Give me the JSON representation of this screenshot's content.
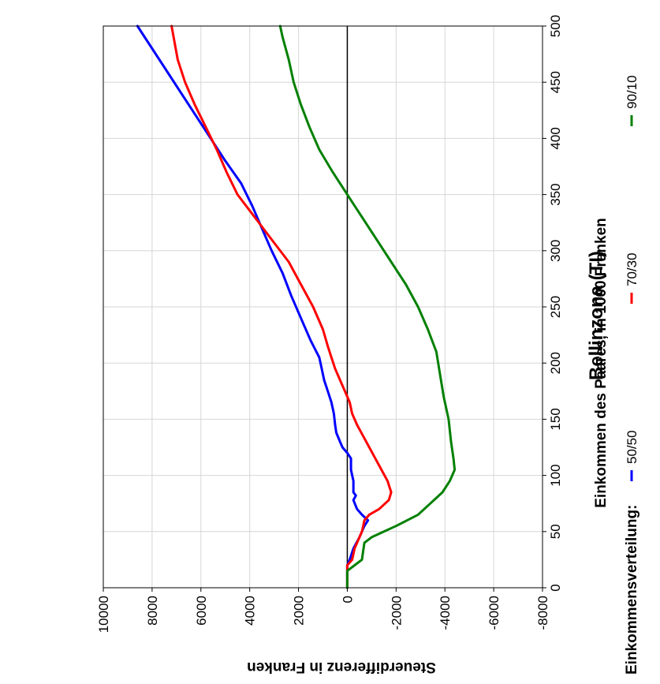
{
  "chart_data": {
    "type": "line",
    "title": "Bellinzona (TI)",
    "xlabel": "Einkommen des Paares, in 1000 Franken",
    "ylabel": "Steuerdifferenz in Franken",
    "xlim": [
      0,
      500
    ],
    "ylim": [
      -8000,
      10000
    ],
    "x_ticks": [
      "0",
      "50",
      "100",
      "150",
      "200",
      "250",
      "300",
      "350",
      "400",
      "450",
      "500"
    ],
    "y_ticks": [
      "10000",
      "8000",
      "6000",
      "4000",
      "2000",
      "0",
      "-2000",
      "-4000",
      "-6000",
      "-8000"
    ],
    "grid": true,
    "orientation": "rotated-90",
    "legend": {
      "title": "Einkommensverteilung:",
      "placement": "bottom"
    },
    "series": [
      {
        "name": "50/50",
        "color": "#0000ff",
        "points": [
          [
            0,
            0
          ],
          [
            20,
            0
          ],
          [
            25,
            -100
          ],
          [
            35,
            -250
          ],
          [
            45,
            -500
          ],
          [
            55,
            -700
          ],
          [
            60,
            -850
          ],
          [
            65,
            -600
          ],
          [
            70,
            -400
          ],
          [
            78,
            -250
          ],
          [
            82,
            -350
          ],
          [
            85,
            -250
          ],
          [
            95,
            -250
          ],
          [
            105,
            -150
          ],
          [
            115,
            -150
          ],
          [
            120,
            0
          ],
          [
            125,
            200
          ],
          [
            130,
            300
          ],
          [
            138,
            450
          ],
          [
            145,
            500
          ],
          [
            155,
            550
          ],
          [
            165,
            650
          ],
          [
            175,
            800
          ],
          [
            185,
            950
          ],
          [
            195,
            1050
          ],
          [
            205,
            1150
          ],
          [
            220,
            1500
          ],
          [
            240,
            1900
          ],
          [
            260,
            2300
          ],
          [
            280,
            2650
          ],
          [
            300,
            3100
          ],
          [
            320,
            3500
          ],
          [
            340,
            3900
          ],
          [
            360,
            4350
          ],
          [
            380,
            5000
          ],
          [
            400,
            5600
          ],
          [
            420,
            6200
          ],
          [
            440,
            6800
          ],
          [
            460,
            7400
          ],
          [
            480,
            8000
          ],
          [
            500,
            8600
          ]
        ]
      },
      {
        "name": "70/30",
        "color": "#ff0000",
        "points": [
          [
            0,
            0
          ],
          [
            20,
            0
          ],
          [
            25,
            -200
          ],
          [
            35,
            -300
          ],
          [
            45,
            -500
          ],
          [
            50,
            -600
          ],
          [
            55,
            -650
          ],
          [
            60,
            -700
          ],
          [
            65,
            -900
          ],
          [
            70,
            -1300
          ],
          [
            78,
            -1700
          ],
          [
            85,
            -1800
          ],
          [
            95,
            -1650
          ],
          [
            105,
            -1400
          ],
          [
            115,
            -1150
          ],
          [
            125,
            -900
          ],
          [
            135,
            -650
          ],
          [
            145,
            -400
          ],
          [
            155,
            -200
          ],
          [
            165,
            -100
          ],
          [
            175,
            100
          ],
          [
            185,
            300
          ],
          [
            195,
            500
          ],
          [
            205,
            650
          ],
          [
            215,
            800
          ],
          [
            230,
            1000
          ],
          [
            250,
            1400
          ],
          [
            270,
            1900
          ],
          [
            290,
            2400
          ],
          [
            310,
            3100
          ],
          [
            330,
            3800
          ],
          [
            350,
            4500
          ],
          [
            370,
            4950
          ],
          [
            390,
            5350
          ],
          [
            410,
            5800
          ],
          [
            430,
            6250
          ],
          [
            450,
            6650
          ],
          [
            470,
            6950
          ],
          [
            500,
            7200
          ]
        ]
      },
      {
        "name": "90/10",
        "color": "#008000",
        "points": [
          [
            0,
            0
          ],
          [
            15,
            0
          ],
          [
            20,
            -300
          ],
          [
            25,
            -600
          ],
          [
            40,
            -700
          ],
          [
            45,
            -1000
          ],
          [
            50,
            -1500
          ],
          [
            55,
            -2000
          ],
          [
            65,
            -2900
          ],
          [
            75,
            -3400
          ],
          [
            85,
            -3900
          ],
          [
            95,
            -4200
          ],
          [
            105,
            -4400
          ],
          [
            115,
            -4350
          ],
          [
            130,
            -4250
          ],
          [
            150,
            -4150
          ],
          [
            170,
            -3950
          ],
          [
            190,
            -3800
          ],
          [
            210,
            -3650
          ],
          [
            230,
            -3300
          ],
          [
            250,
            -2900
          ],
          [
            270,
            -2400
          ],
          [
            290,
            -1800
          ],
          [
            310,
            -1200
          ],
          [
            330,
            -600
          ],
          [
            350,
            0
          ],
          [
            370,
            600
          ],
          [
            390,
            1150
          ],
          [
            410,
            1550
          ],
          [
            430,
            1900
          ],
          [
            450,
            2200
          ],
          [
            470,
            2400
          ],
          [
            490,
            2650
          ],
          [
            500,
            2750
          ]
        ]
      }
    ]
  }
}
